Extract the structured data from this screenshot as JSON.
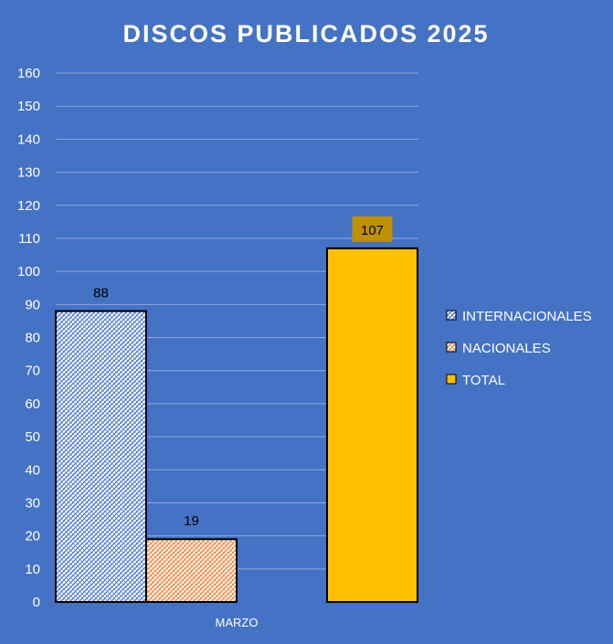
{
  "chart_data": {
    "type": "bar",
    "title": "DISCOS PUBLICADOS 2025",
    "categories": [
      "MARZO"
    ],
    "series": [
      {
        "name": "INTERNACIONALES",
        "values": [
          88
        ],
        "pattern": "hatch-blue",
        "color": "#4472C4"
      },
      {
        "name": "NACIONALES",
        "values": [
          19
        ],
        "pattern": "hatch-orange",
        "color": "#ED7D31"
      },
      {
        "name": "TOTAL",
        "values": [
          107
        ],
        "pattern": "solid",
        "color": "#FFC000"
      }
    ],
    "ylim": [
      0,
      160
    ],
    "yticks": [
      0,
      10,
      20,
      30,
      40,
      50,
      60,
      70,
      80,
      90,
      100,
      110,
      120,
      130,
      140,
      150,
      160
    ],
    "xlabel": "",
    "ylabel": "",
    "grid": true,
    "legend_position": "right",
    "data_labels": [
      "88",
      "19",
      "107"
    ]
  },
  "colors": {
    "background": "#4472C4",
    "gridline": "#8EA9DB",
    "text": "#FFFFFF",
    "total_label_bg": "#BF9000"
  }
}
